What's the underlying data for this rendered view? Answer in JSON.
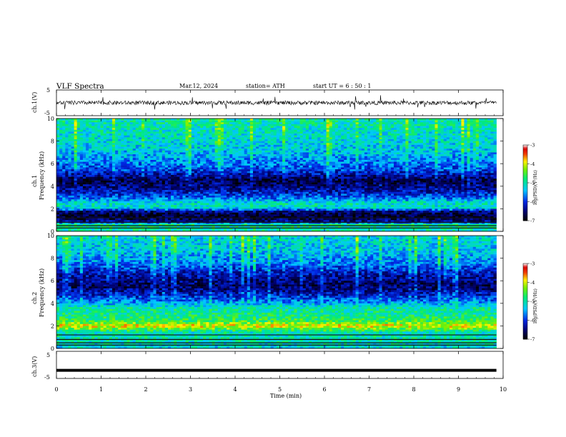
{
  "header": {
    "title": "VLF  Spectra",
    "date": "Mar.12, 2024",
    "station": "station= ATH",
    "start": "start  UT  =   6  : 50 : 1"
  },
  "chart_data": [
    {
      "type": "line",
      "id": "ch1-waveform",
      "ylabel": "ch.1(V)",
      "ylim": [
        -5,
        5
      ],
      "yticks": [
        -5,
        5
      ],
      "xlim": [
        0,
        10
      ],
      "baseline": 0,
      "data_end_min": 9.85,
      "description_level": "noisy waveform around 0 V with sparse spikes"
    },
    {
      "type": "heatmap",
      "id": "ch1-spectrogram",
      "ylabel": "ch.1\nFrequency  (kHz)",
      "ylabel_line1": "ch.1",
      "ylabel_line2": "Frequency  (kHz)",
      "xlim": [
        0,
        10
      ],
      "ylim": [
        0,
        10
      ],
      "yticks": [
        0,
        2,
        4,
        6,
        8,
        10
      ],
      "data_end_min": 9.85,
      "colorbar": {
        "label": "log(PSD)(V²/Hz)",
        "range": [
          -7,
          -3
        ],
        "ticks": [
          -3,
          -4,
          -5,
          -6,
          -7
        ]
      },
      "level_profile": [
        {
          "f": 0.2,
          "v": -5.0
        },
        {
          "f": 0.6,
          "v": -4.9
        },
        {
          "f": 0.9,
          "v": -6.4
        },
        {
          "f": 1.3,
          "v": -6.8
        },
        {
          "f": 1.7,
          "v": -6.6
        },
        {
          "f": 2.1,
          "v": -5.2
        },
        {
          "f": 2.5,
          "v": -5.1
        },
        {
          "f": 3.0,
          "v": -5.8
        },
        {
          "f": 3.5,
          "v": -6.2
        },
        {
          "f": 4.0,
          "v": -6.5
        },
        {
          "f": 4.5,
          "v": -6.7
        },
        {
          "f": 5.0,
          "v": -6.3
        },
        {
          "f": 5.5,
          "v": -5.9
        },
        {
          "f": 6.0,
          "v": -5.7
        },
        {
          "f": 7.0,
          "v": -5.4
        },
        {
          "f": 8.0,
          "v": -5.2
        },
        {
          "f": 9.0,
          "v": -5.1
        },
        {
          "f": 10.0,
          "v": -5.0
        }
      ]
    },
    {
      "type": "heatmap",
      "id": "ch2-spectrogram",
      "ylabel": "ch.2\nFrequency  (kHz)",
      "ylabel_line1": "ch.2",
      "ylabel_line2": "Frequency  (kHz)",
      "xlim": [
        0,
        10
      ],
      "ylim": [
        0,
        10
      ],
      "yticks": [
        0,
        2,
        4,
        6,
        8,
        10
      ],
      "data_end_min": 9.85,
      "colorbar": {
        "label": "log(PSD)(V²/Hz)",
        "range": [
          -7,
          -3
        ],
        "ticks": [
          -3,
          -4,
          -5,
          -6,
          -7
        ]
      },
      "level_profile": [
        {
          "f": 0.2,
          "v": -5.2
        },
        {
          "f": 0.8,
          "v": -5.0
        },
        {
          "f": 1.4,
          "v": -5.1
        },
        {
          "f": 2.0,
          "v": -3.9
        },
        {
          "f": 2.4,
          "v": -4.6
        },
        {
          "f": 3.0,
          "v": -4.9
        },
        {
          "f": 3.6,
          "v": -5.0
        },
        {
          "f": 4.2,
          "v": -5.7
        },
        {
          "f": 4.8,
          "v": -6.2
        },
        {
          "f": 5.5,
          "v": -6.6
        },
        {
          "f": 6.5,
          "v": -6.3
        },
        {
          "f": 7.5,
          "v": -5.7
        },
        {
          "f": 8.5,
          "v": -5.4
        },
        {
          "f": 10.0,
          "v": -5.2
        }
      ]
    },
    {
      "type": "line",
      "id": "ch3-waveform",
      "ylabel": "ch.3(V)",
      "ylim": [
        -5,
        5
      ],
      "yticks": [
        -5,
        5
      ],
      "xlim": [
        0,
        10
      ],
      "baseline": -2,
      "data_end_min": 9.85,
      "xlabel": "Time  (min)",
      "xticks": [
        0,
        1,
        2,
        3,
        4,
        5,
        6,
        7,
        8,
        9,
        10
      ]
    }
  ]
}
